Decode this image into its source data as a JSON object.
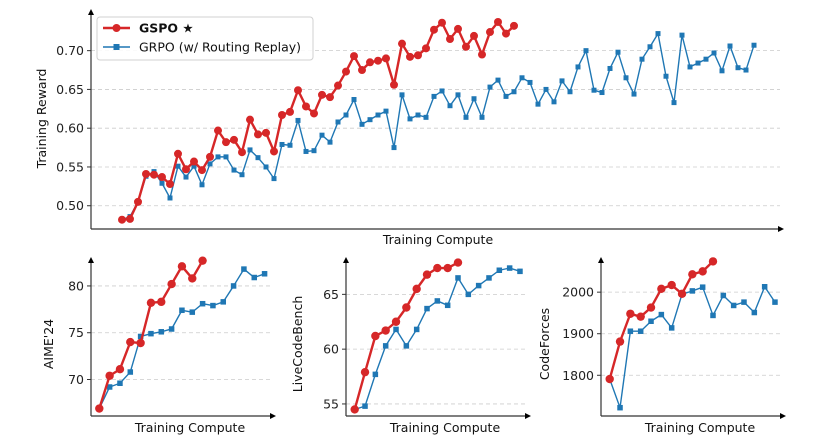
{
  "chart_data": [
    {
      "type": "line",
      "id": "training-reward",
      "title": "",
      "xlabel": "Training Compute",
      "ylabel": "Training Reward",
      "ylim": [
        0.47,
        0.755
      ],
      "yticks": [
        0.5,
        0.55,
        0.6,
        0.65,
        0.7
      ],
      "ytick_labels": [
        "0.50",
        "0.55",
        "0.60",
        "0.65",
        "0.70"
      ],
      "grid": true,
      "legend": {
        "placement": "top-left",
        "entries": [
          {
            "label": "GSPO ★",
            "series": "GSPO"
          },
          {
            "label": "GRPO (w/ Routing Replay)",
            "series": "GRPO"
          }
        ]
      },
      "xlim": [
        -5,
        82
      ],
      "series": [
        {
          "name": "GSPO",
          "color": "#d62728",
          "marker": "circle",
          "values": [
            0.482,
            0.483,
            0.505,
            0.541,
            0.54,
            0.537,
            0.528,
            0.567,
            0.547,
            0.557,
            0.546,
            0.563,
            0.597,
            0.582,
            0.585,
            0.569,
            0.611,
            0.592,
            0.594,
            0.57,
            0.617,
            0.621,
            0.649,
            0.628,
            0.619,
            0.643,
            0.64,
            0.655,
            0.673,
            0.693,
            0.675,
            0.685,
            0.687,
            0.69,
            0.656,
            0.709,
            0.692,
            0.694,
            0.703,
            0.727,
            0.736,
            0.715,
            0.728,
            0.705,
            0.719,
            0.695,
            0.724,
            0.737,
            0.722,
            0.732
          ]
        },
        {
          "name": "GRPO (w/ Routing Replay)",
          "color": "#1f77b4",
          "marker": "square",
          "values": [
            0.482,
            0.486,
            0.505,
            0.538,
            0.544,
            0.529,
            0.51,
            0.551,
            0.537,
            0.551,
            0.527,
            0.554,
            0.563,
            0.563,
            0.546,
            0.54,
            0.572,
            0.562,
            0.55,
            0.535,
            0.579,
            0.578,
            0.61,
            0.57,
            0.571,
            0.591,
            0.582,
            0.608,
            0.617,
            0.637,
            0.605,
            0.611,
            0.617,
            0.622,
            0.575,
            0.643,
            0.612,
            0.617,
            0.614,
            0.641,
            0.648,
            0.629,
            0.643,
            0.614,
            0.638,
            0.614,
            0.653,
            0.662,
            0.641,
            0.647,
            0.665,
            0.659,
            0.631,
            0.65,
            0.634,
            0.661,
            0.647,
            0.679,
            0.7,
            0.649,
            0.646,
            0.677,
            0.698,
            0.665,
            0.644,
            0.689,
            0.705,
            0.722,
            0.667,
            0.633,
            0.72,
            0.679,
            0.684,
            0.689,
            0.697,
            0.674,
            0.706,
            0.678,
            0.675,
            0.707
          ]
        }
      ]
    },
    {
      "type": "line",
      "id": "aime24",
      "title": "",
      "xlabel": "Training Compute",
      "ylabel": "AIME'24",
      "ylim": [
        66.1,
        83.2
      ],
      "yticks": [
        70,
        75,
        80
      ],
      "ytick_labels": [
        "70",
        "75",
        "80"
      ],
      "grid": true,
      "xlim": [
        -0.8,
        18.5
      ],
      "series": [
        {
          "name": "GSPO",
          "color": "#d62728",
          "marker": "circle",
          "values": [
            66.9,
            70.4,
            71.1,
            74.0,
            73.9,
            78.2,
            78.3,
            80.2,
            82.1,
            80.8,
            82.7
          ]
        },
        {
          "name": "GRPO (w/ Routing Replay)",
          "color": "#1f77b4",
          "marker": "square",
          "values": [
            66.9,
            69.2,
            69.6,
            70.8,
            74.6,
            74.9,
            75.1,
            75.4,
            77.4,
            77.2,
            78.1,
            77.9,
            78.3,
            80.0,
            81.8,
            80.9,
            81.3
          ]
        }
      ]
    },
    {
      "type": "line",
      "id": "livecodebench",
      "title": "",
      "xlabel": "Training Compute",
      "ylabel": "LiveCodeBench",
      "ylim": [
        53.9,
        68.5
      ],
      "yticks": [
        55,
        60,
        65
      ],
      "ytick_labels": [
        "55",
        "60",
        "65"
      ],
      "grid": true,
      "xlim": [
        -0.8,
        18.5
      ],
      "series": [
        {
          "name": "GSPO",
          "color": "#d62728",
          "marker": "circle",
          "values": [
            54.5,
            57.9,
            61.2,
            61.7,
            62.5,
            63.8,
            65.5,
            66.8,
            67.4,
            67.4,
            67.9
          ]
        },
        {
          "name": "GRPO (w/ Routing Replay)",
          "color": "#1f77b4",
          "marker": "square",
          "values": [
            54.5,
            54.8,
            57.7,
            60.3,
            61.8,
            60.3,
            61.8,
            63.7,
            64.4,
            64.0,
            66.5,
            65.0,
            65.8,
            66.5,
            67.2,
            67.4,
            67.1
          ]
        }
      ]
    },
    {
      "type": "line",
      "id": "codeforces",
      "title": "",
      "xlabel": "Training Compute",
      "ylabel": "CodeForces",
      "ylim": [
        1702,
        2087
      ],
      "yticks": [
        1800,
        1900,
        2000
      ],
      "ytick_labels": [
        "1800",
        "1900",
        "2000"
      ],
      "grid": true,
      "xlim": [
        -0.8,
        18.5
      ],
      "series": [
        {
          "name": "GSPO",
          "color": "#d62728",
          "marker": "circle",
          "values": [
            1791,
            1881,
            1948,
            1941,
            1963,
            2008,
            2017,
            1996,
            2043,
            2050,
            2074
          ]
        },
        {
          "name": "GRPO (w/ Routing Replay)",
          "color": "#1f77b4",
          "marker": "square",
          "values": [
            1791,
            1722,
            1906,
            1906,
            1930,
            1946,
            1914,
            1995,
            2003,
            2012,
            1944,
            1992,
            1968,
            1976,
            1951,
            2013,
            1976
          ]
        }
      ]
    }
  ]
}
